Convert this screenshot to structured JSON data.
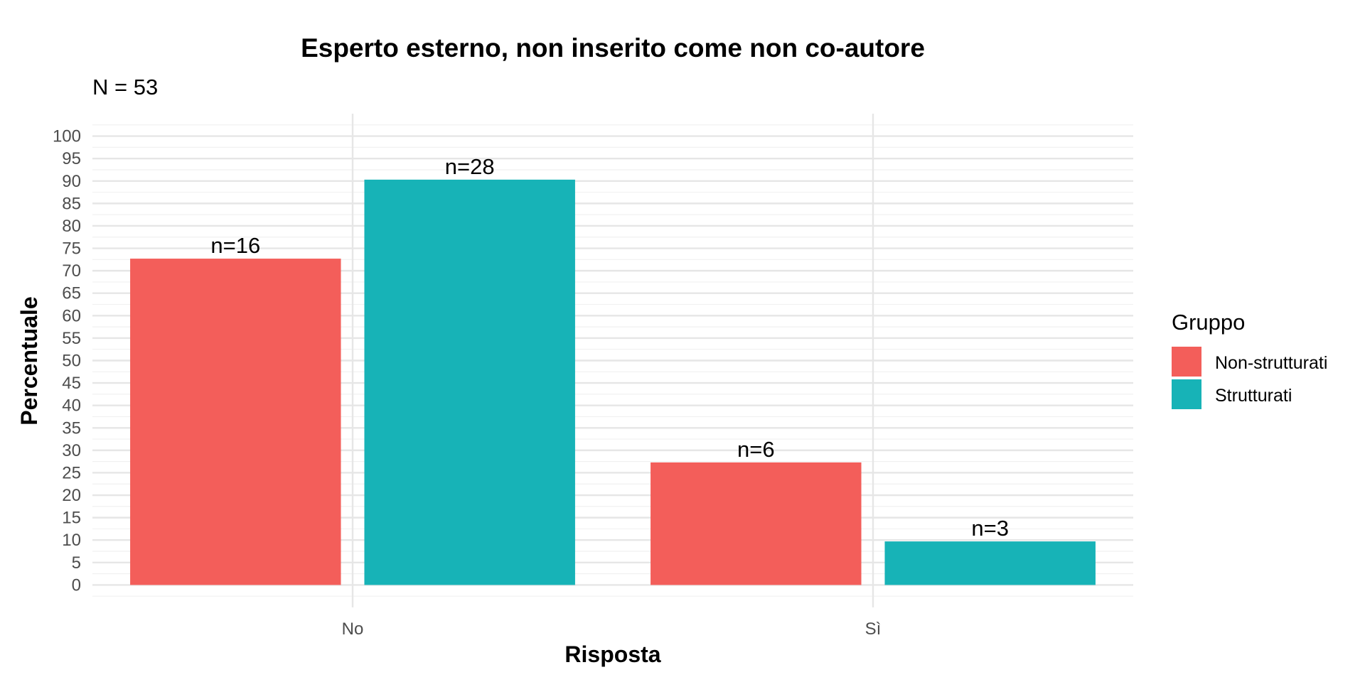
{
  "chart_data": {
    "type": "bar",
    "title": "Esperto esterno, non inserito come non co-autore",
    "subtitle": "N = 53",
    "xlabel": "Risposta",
    "ylabel": "Percentuale",
    "categories": [
      "No",
      "Sì"
    ],
    "y_ticks": [
      "0",
      "5",
      "10",
      "15",
      "20",
      "25",
      "30",
      "35",
      "40",
      "45",
      "50",
      "55",
      "60",
      "65",
      "70",
      "75",
      "80",
      "85",
      "90",
      "95",
      "100"
    ],
    "ylim": [
      -5,
      105
    ],
    "grid": true,
    "legend": {
      "title": "Gruppo",
      "placement": "right"
    },
    "series": [
      {
        "name": "Non-strutturati",
        "color": "#F35E5A",
        "values": [
          72.7,
          27.3
        ],
        "labels": [
          "n=16",
          "n=6"
        ]
      },
      {
        "name": "Strutturati",
        "color": "#17B3B7",
        "values": [
          90.3,
          9.7
        ],
        "labels": [
          "n=28",
          "n=3"
        ]
      }
    ]
  }
}
